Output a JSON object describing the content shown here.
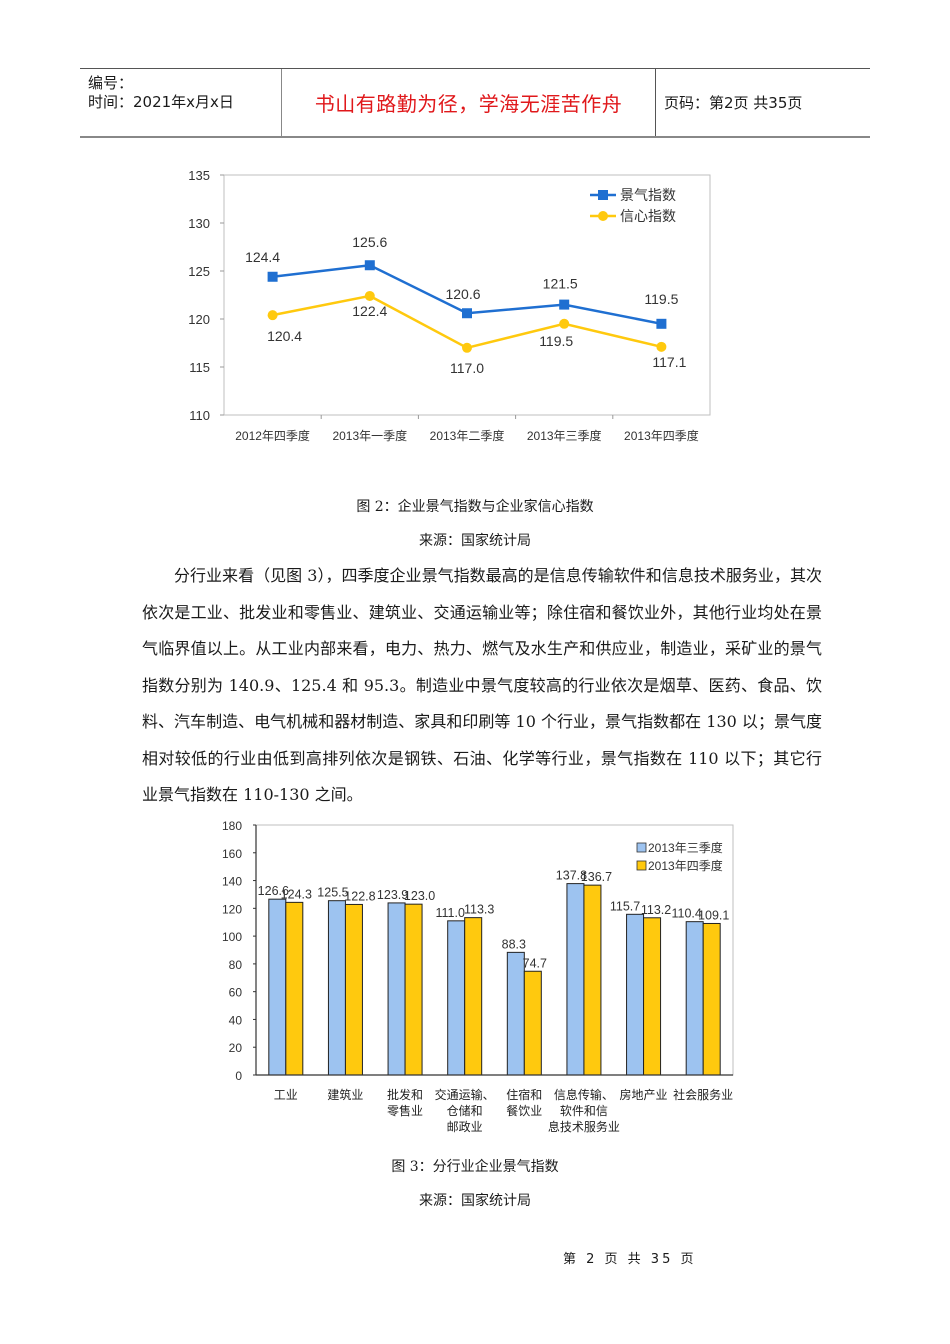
{
  "header": {
    "number_label": "编号：",
    "time_label": "时间：2021年x月x日",
    "motto": "书山有路勤为径，学海无涯苦作舟",
    "page_info": "页码：第2页 共35页"
  },
  "figure2": {
    "caption": "图 2：企业景气指数与企业家信心指数",
    "source": "来源：国家统计局"
  },
  "paragraph": "分行业来看（见图 3），四季度企业景气指数最高的是信息传输软件和信息技术服务业，其次依次是工业、批发业和零售业、建筑业、交通运输业等；除住宿和餐饮业外，其他行业均处在景气临界值以上。从工业内部来看，电力、热力、燃气及水生产和供应业，制造业，采矿业的景气指数分别为 140.9、125.4 和 95.3。制造业中景气度较高的行业依次是烟草、医药、食品、饮料、汽车制造、电气机械和器材制造、家具和印刷等 10 个行业，景气指数都在 130 以；景气度相对较低的行业由低到高排列依次是钢铁、石油、化学等行业，景气指数在 110 以下；其它行业景气指数在 110-130 之间。",
  "figure3": {
    "caption": "图 3：分行业企业景气指数",
    "source": "来源：国家统计局"
  },
  "footer": {
    "page": "第 2 页 共 35 页"
  },
  "chart_data": [
    {
      "type": "line",
      "title": "",
      "categories": [
        "2012年四季度",
        "2013年一季度",
        "2013年二季度",
        "2013年三季度",
        "2013年四季度"
      ],
      "series": [
        {
          "name": "景气指数",
          "color": "#1f6fd1",
          "marker": "square",
          "values": [
            124.4,
            125.6,
            120.6,
            121.5,
            119.5
          ]
        },
        {
          "name": "信心指数",
          "color": "#ffc90e",
          "marker": "circle",
          "values": [
            120.4,
            122.4,
            117.0,
            119.5,
            117.1
          ]
        }
      ],
      "xlabel": "",
      "ylabel": "",
      "ylim": [
        110,
        135
      ],
      "yticks": [
        110,
        115,
        120,
        125,
        130,
        135
      ],
      "grid": false,
      "legend_position": "top-right"
    },
    {
      "type": "bar",
      "title": "",
      "categories": [
        "工业",
        "建筑业",
        "批发和\n零售业",
        "交通运输、\n仓储和\n邮政业",
        "住宿和\n餐饮业",
        "信息传输、\n软件和信\n息技术服务业",
        "房地产业",
        "社会服务业"
      ],
      "series": [
        {
          "name": "2013年三季度",
          "color": "#9dc3f0",
          "values": [
            126.6,
            125.5,
            123.9,
            111.0,
            88.3,
            137.8,
            115.7,
            110.4
          ]
        },
        {
          "name": "2013年四季度",
          "color": "#ffc90e",
          "values": [
            124.3,
            122.8,
            123.0,
            113.3,
            74.7,
            136.7,
            113.2,
            109.1
          ]
        }
      ],
      "xlabel": "",
      "ylabel": "",
      "ylim": [
        0,
        180
      ],
      "yticks": [
        0,
        20,
        40,
        60,
        80,
        100,
        120,
        140,
        160,
        180
      ],
      "grid": false,
      "legend_position": "top-right"
    }
  ]
}
